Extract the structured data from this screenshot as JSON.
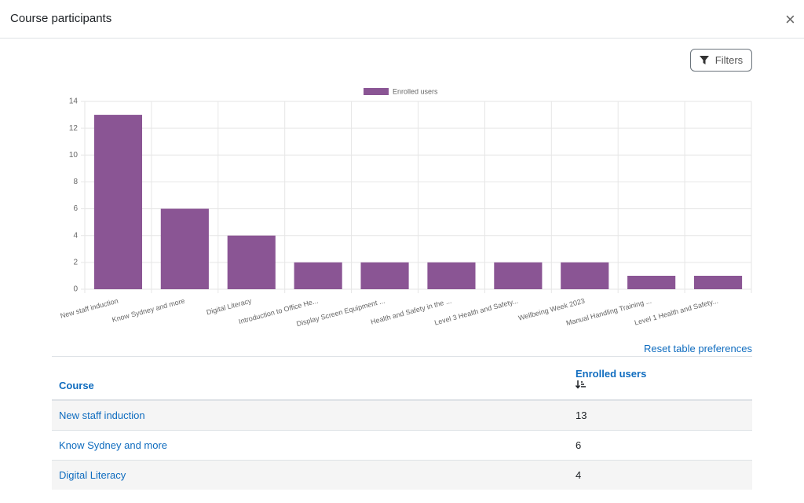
{
  "header": {
    "title": "Course participants"
  },
  "filters": {
    "label": "Filters"
  },
  "chart_data": {
    "type": "bar",
    "categories": [
      "New staff induction",
      "Know Sydney and more",
      "Digital Literacy",
      "Introduction to Office He...",
      "Display Screen Equipment ...",
      "Health and Safety in the ...",
      "Level 3 Health and Safety...",
      "Wellbeing Week 2023",
      "Manual Handling Training ...",
      "Level 1 Health and Safety..."
    ],
    "series": [
      {
        "name": "Enrolled users",
        "color": "#8a5594",
        "values": [
          13,
          6,
          4,
          2,
          2,
          2,
          2,
          2,
          1,
          1
        ]
      }
    ],
    "ylim": [
      0,
      14
    ],
    "yticks": [
      0,
      2,
      4,
      6,
      8,
      10,
      12,
      14
    ],
    "grid": true,
    "legend": "top"
  },
  "table": {
    "reset": "Reset table preferences",
    "columns": [
      "Course",
      "Enrolled users"
    ],
    "rows": [
      [
        "New staff induction",
        "13"
      ],
      [
        "Know Sydney and more",
        "6"
      ],
      [
        "Digital Literacy",
        "4"
      ]
    ]
  }
}
